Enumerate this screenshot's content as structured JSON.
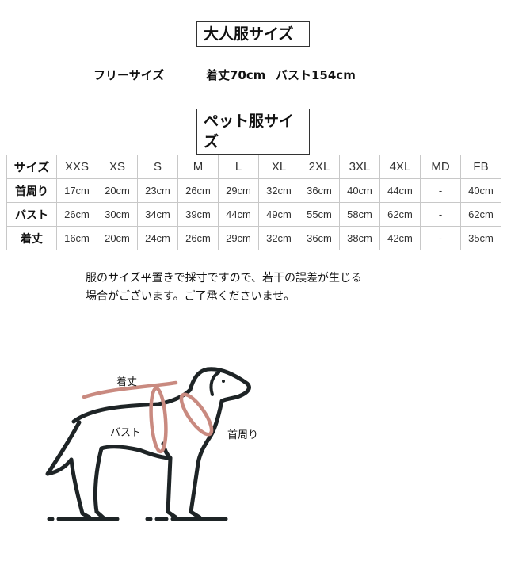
{
  "adult_section": {
    "title": "大人服サイズ",
    "size_label": "フリーサイズ",
    "length": "着丈70cm",
    "bust": "バスト154cm"
  },
  "pet_section": {
    "title": "ペット服サイズ",
    "table": {
      "header": [
        "サイズ",
        "XXS",
        "XS",
        "S",
        "M",
        "L",
        "XL",
        "2XL",
        "3XL",
        "4XL",
        "MD",
        "FB"
      ],
      "rows": [
        [
          "首周り",
          "17cm",
          "20cm",
          "23cm",
          "26cm",
          "29cm",
          "32cm",
          "36cm",
          "40cm",
          "44cm",
          "-",
          "40cm"
        ],
        [
          "バスト",
          "26cm",
          "30cm",
          "34cm",
          "39cm",
          "44cm",
          "49cm",
          "55cm",
          "58cm",
          "62cm",
          "-",
          "62cm"
        ],
        [
          "着丈",
          "16cm",
          "20cm",
          "24cm",
          "26cm",
          "29cm",
          "32cm",
          "36cm",
          "38cm",
          "42cm",
          "-",
          "35cm"
        ]
      ]
    },
    "note_line1": "服のサイズ平置きで採寸ですので、若干の誤差が生じる",
    "note_line2": "場合がございます。ご了承くださいませ。"
  },
  "diagram": {
    "length_label": "着丈",
    "bust_label": "バスト",
    "neck_label": "首周り",
    "measure_color": "#c98a80",
    "outline_color": "#1e2426"
  }
}
